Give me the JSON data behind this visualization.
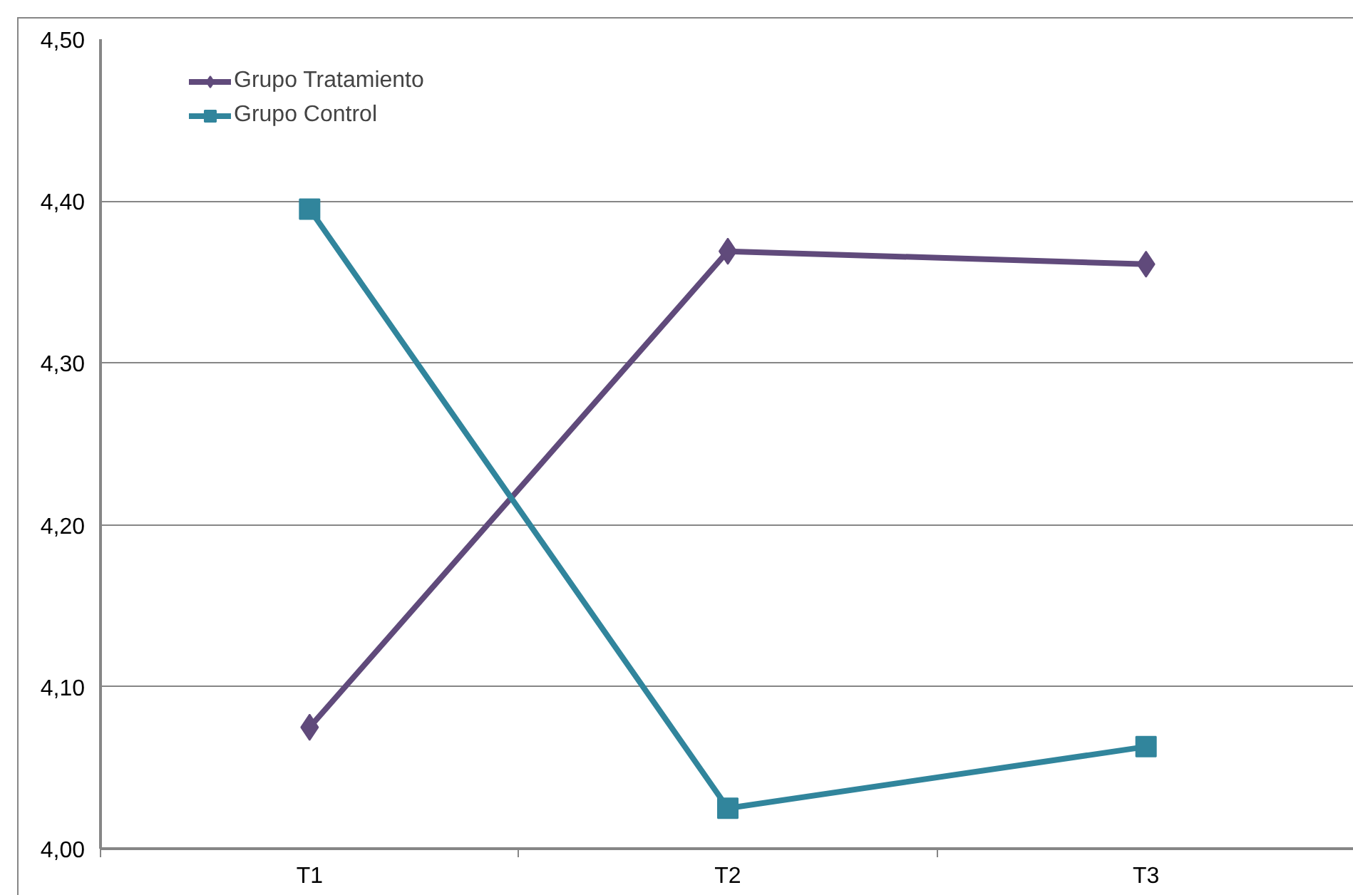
{
  "chart_data": {
    "type": "line",
    "categories": [
      "T1",
      "T2",
      "T3"
    ],
    "series": [
      {
        "name": "Grupo Tratamiento",
        "color": "#604a7b",
        "marker": "diamond",
        "values": [
          4.075,
          4.369,
          4.361
        ]
      },
      {
        "name": "Grupo Control",
        "color": "#31859c",
        "marker": "square",
        "values": [
          4.395,
          4.025,
          4.063
        ]
      }
    ],
    "ylim": [
      4.0,
      4.5
    ],
    "yticks": [
      {
        "value": 4.0,
        "label": "4,00"
      },
      {
        "value": 4.1,
        "label": "4,10"
      },
      {
        "value": 4.2,
        "label": "4,20"
      },
      {
        "value": 4.3,
        "label": "4,30"
      },
      {
        "value": 4.4,
        "label": "4,40"
      },
      {
        "value": 4.5,
        "label": "4,50"
      }
    ],
    "grid": "y",
    "legend": "top left",
    "line_style": "solid"
  }
}
